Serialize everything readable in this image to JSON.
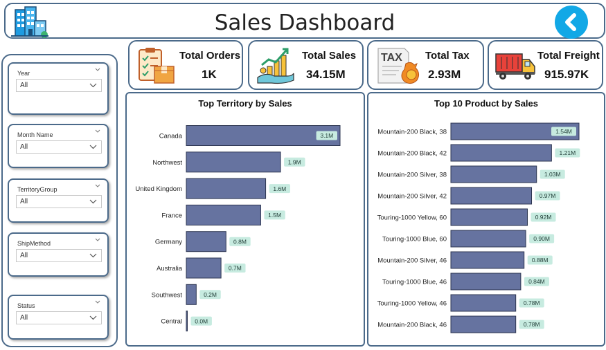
{
  "header": {
    "title": "Sales Dashboard",
    "back_icon": "chevron-left-icon",
    "logo_icon": "office-buildings-icon"
  },
  "filters": [
    {
      "title": "Year",
      "value": "All"
    },
    {
      "title": "Month Name",
      "value": "All"
    },
    {
      "title": "TerritoryGroup",
      "value": "All"
    },
    {
      "title": "ShipMethod",
      "value": "All"
    },
    {
      "title": "Status",
      "value": "All"
    }
  ],
  "kpis": [
    {
      "label": "Total Orders",
      "value": "1K",
      "icon": "clipboard-box-icon"
    },
    {
      "label": "Total Sales",
      "value": "34.15M",
      "icon": "growth-hand-coins-icon"
    },
    {
      "label": "Total Tax",
      "value": "2.93M",
      "icon": "tax-document-icon",
      "icon_text": "TAX"
    },
    {
      "label": "Total Freight",
      "value": "915.97K",
      "icon": "delivery-truck-icon"
    }
  ],
  "colors": {
    "accent": "#12a8e6",
    "border": "#4b6a8a",
    "bar": "#6673a0",
    "data_label_bg": "#c7ebe0"
  },
  "chart_data": [
    {
      "type": "bar",
      "orientation": "horizontal",
      "title": "Top Territory by Sales",
      "categories": [
        "Canada",
        "Northwest",
        "United Kingdom",
        "France",
        "Germany",
        "Australia",
        "Southwest",
        "Central"
      ],
      "values": [
        3.1,
        1.9,
        1.6,
        1.5,
        0.8,
        0.7,
        0.2,
        0.02
      ],
      "data_labels": [
        "3.1M",
        "1.9M",
        "1.6M",
        "1.5M",
        "0.8M",
        "0.7M",
        "0.2M",
        "0.0M"
      ],
      "xlim": [
        0,
        3.1
      ],
      "grid": false
    },
    {
      "type": "bar",
      "orientation": "horizontal",
      "title": "Top 10 Product by Sales",
      "categories": [
        "Mountain-200 Black, 38",
        "Mountain-200 Black, 42",
        "Mountain-200 Silver, 38",
        "Mountain-200 Silver, 42",
        "Touring-1000 Yellow, 60",
        "Touring-1000 Blue, 60",
        "Mountain-200 Silver, 46",
        "Touring-1000 Blue, 46",
        "Touring-1000 Yellow, 46",
        "Mountain-200 Black, 46"
      ],
      "values": [
        1.54,
        1.21,
        1.03,
        0.97,
        0.92,
        0.9,
        0.88,
        0.84,
        0.78,
        0.78
      ],
      "data_labels": [
        "1.54M",
        "1.21M",
        "1.03M",
        "0.97M",
        "0.92M",
        "0.90M",
        "0.88M",
        "0.84M",
        "0.78M",
        "0.78M"
      ],
      "xlim": [
        0,
        1.54
      ],
      "grid": false
    }
  ]
}
